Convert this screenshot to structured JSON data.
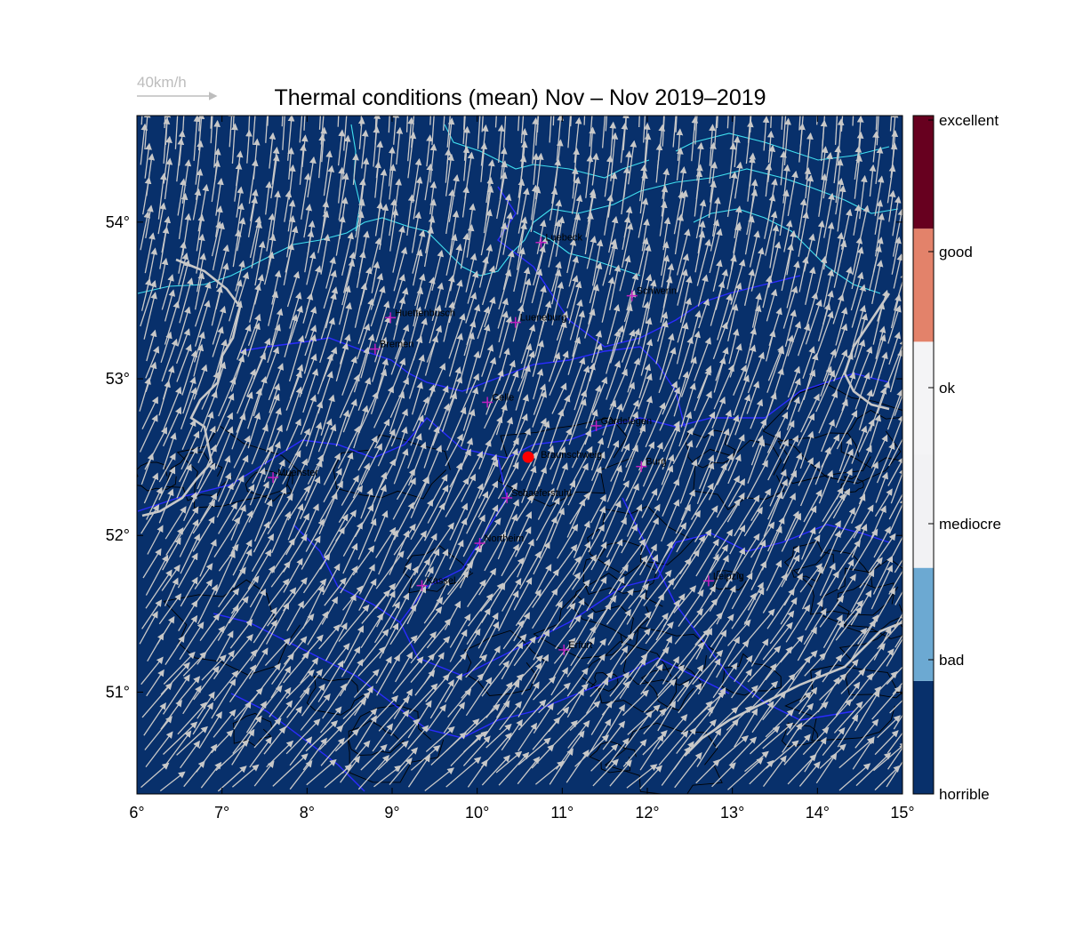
{
  "title": "Thermal conditions (mean) Nov – Nov  2019–2019",
  "wind_reference": {
    "label": "40km/h",
    "speed_kmh": 40
  },
  "map": {
    "lon_range": [
      6,
      15
    ],
    "lat_range": [
      50.35,
      54.68
    ],
    "background_color": "#08306b",
    "x_tick_labels": [
      {
        "lon": 6,
        "label": "6°"
      },
      {
        "lon": 7,
        "label": "7°"
      },
      {
        "lon": 8,
        "label": "8°"
      },
      {
        "lon": 9,
        "label": "9°"
      },
      {
        "lon": 10,
        "label": "10°"
      },
      {
        "lon": 11,
        "label": "11°"
      },
      {
        "lon": 12,
        "label": "12°"
      },
      {
        "lon": 13,
        "label": "13°"
      },
      {
        "lon": 14,
        "label": "14°"
      },
      {
        "lon": 15,
        "label": "15°"
      }
    ],
    "y_tick_labels": [
      {
        "lat": 51,
        "label": "51°"
      },
      {
        "lat": 52,
        "label": "52°"
      },
      {
        "lat": 53,
        "label": "53°"
      },
      {
        "lat": 54,
        "label": "54°"
      }
    ],
    "home_marker": {
      "name": "Braunschweig",
      "lon": 10.6,
      "lat": 52.5,
      "color": "#ff0000"
    },
    "cities": [
      {
        "name": "Luebeck",
        "lon": 10.75,
        "lat": 53.87
      },
      {
        "name": "Schwerin",
        "lon": 11.82,
        "lat": 53.53
      },
      {
        "name": "Huettenbusch",
        "lon": 8.98,
        "lat": 53.39
      },
      {
        "name": "Lueneburg",
        "lon": 10.45,
        "lat": 53.36
      },
      {
        "name": "Bremen",
        "lon": 8.8,
        "lat": 53.19
      },
      {
        "name": "Celle",
        "lon": 10.12,
        "lat": 52.85
      },
      {
        "name": "Gardelegen",
        "lon": 11.4,
        "lat": 52.7
      },
      {
        "name": "Burg",
        "lon": 11.93,
        "lat": 52.44
      },
      {
        "name": "Muenster",
        "lon": 7.6,
        "lat": 52.37
      },
      {
        "name": "Schaeferstuhl",
        "lon": 10.35,
        "lat": 52.24
      },
      {
        "name": "Northeim",
        "lon": 10.03,
        "lat": 51.95
      },
      {
        "name": "Kassel",
        "lon": 9.35,
        "lat": 51.68
      },
      {
        "name": "Leipzig",
        "lon": 12.72,
        "lat": 51.71
      },
      {
        "name": "Erfurt",
        "lon": 11.02,
        "lat": 51.27
      }
    ],
    "city_marker_color": "#c020c0",
    "arrow_color": "#c8c8c8",
    "coast_color": "#40e0f0",
    "border_color": "#2b2bff",
    "contour_color": "#000000",
    "wind_field_unit": "km/h"
  },
  "colorbar": {
    "segments": [
      {
        "color": "#08306b",
        "from": 0,
        "to": 1
      },
      {
        "color": "#6ca9d2",
        "from": 1,
        "to": 2
      },
      {
        "color": "#f2f2f4",
        "from": 2,
        "to": 3
      },
      {
        "color": "#f4f4f6",
        "from": 3,
        "to": 4
      },
      {
        "color": "#e3826a",
        "from": 4,
        "to": 5
      },
      {
        "color": "#67001f",
        "from": 5,
        "to": 6
      }
    ],
    "labels": [
      {
        "value": 0,
        "label": "horrible"
      },
      {
        "value": 1,
        "label": "bad"
      },
      {
        "value": 2,
        "label": "mediocre"
      },
      {
        "value": 3,
        "label": "ok"
      },
      {
        "value": 4,
        "label": "good"
      },
      {
        "value": 5,
        "label": "excellent"
      }
    ]
  }
}
